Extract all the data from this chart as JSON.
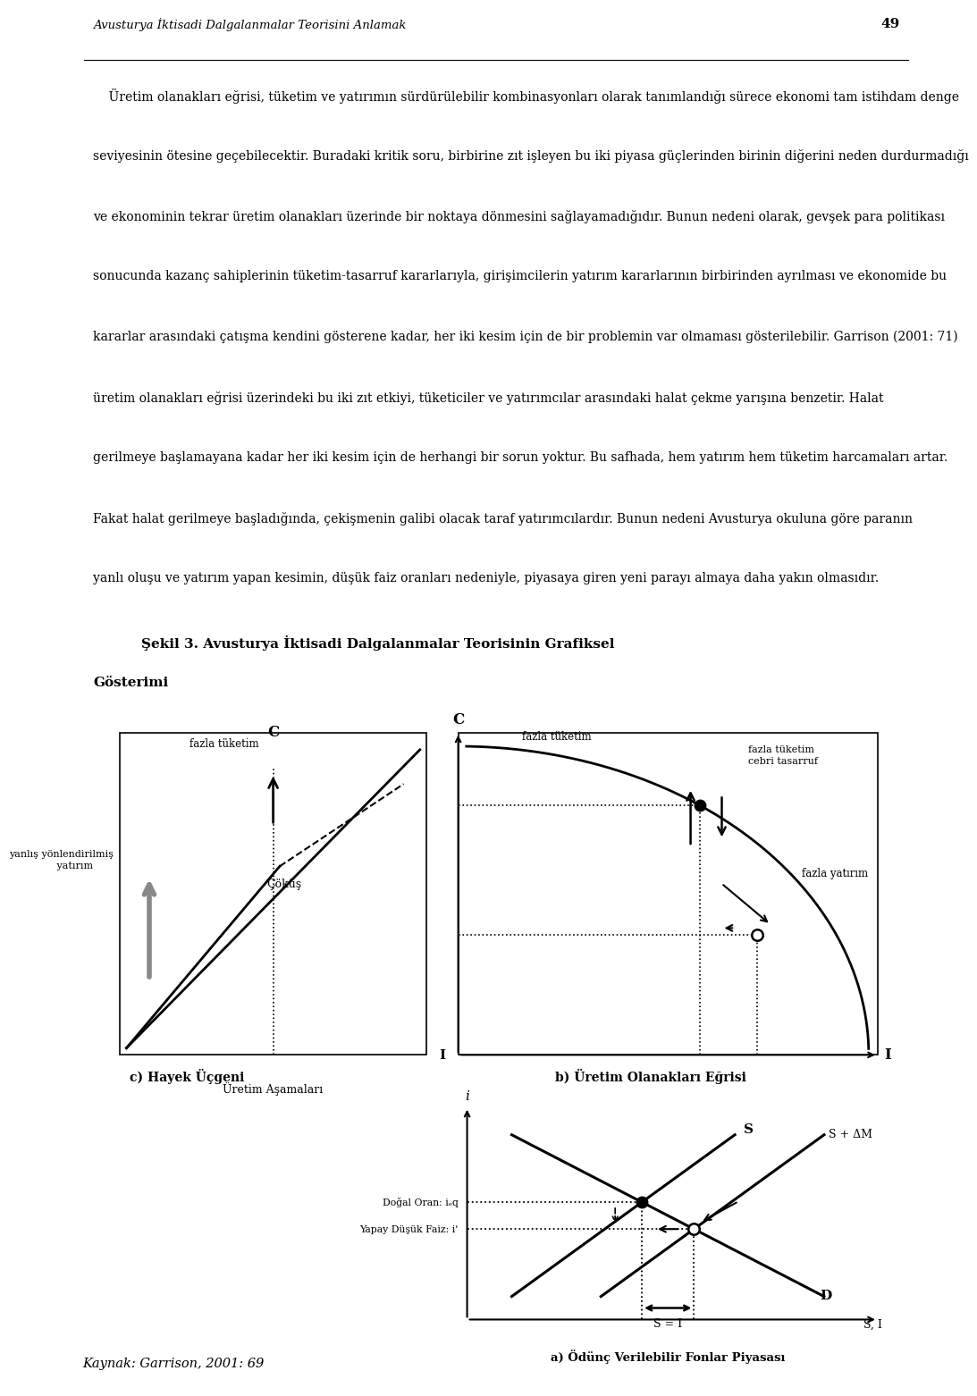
{
  "header_text": "Avusturya İktisadi Dalgalanmalar Teorisini Anlamak",
  "page_number": "49",
  "para_lines": [
    "    Üretim olanakları eğrisi, tüketim ve yatırımın sürdürülebilir kombinasyonları olarak tanımlandığı sürece ekonomi tam istihdam denge",
    "seviyesinin ötesine geçebilecektir. Buradaki kritik soru, birbirine zıt işleyen bu iki piyasa güçlerinden birinin diğerini neden durdurmadığı",
    "ve ekonominin tekrar üretim olanakları üzerinde bir noktaya dönmesini sağlayamadığıdır. Bunun nedeni olarak, gevşek para politikası",
    "sonucunda kazanç sahiplerinin tüketim-tasarruf kararlarıyla, girişimcilerin yatırım kararlarının birbirinden ayrılması ve ekonomide bu",
    "kararlar arasındaki çatışma kendini gösterene kadar, her iki kesim için de bir problemin var olmaması gösterilebilir. Garrison (2001: 71)",
    "üretim olanakları eğrisi üzerindeki bu iki zıt etkiyi, tüketiciler ve yatırımcılar arasındaki halat çekme yarışına benzetir. Halat",
    "gerilmeye başlamayana kadar her iki kesim için de herhangi bir sorun yoktur. Bu safhada, hem yatırım hem tüketim harcamaları artar.",
    "Fakat halat gerilmeye başladığında, çekişmenin galibi olacak taraf yatırımcılardır. Bunun nedeni Avusturya okuluna göre paranın",
    "yanlı oluşu ve yatırım yapan kesimin, düşük faiz oranları nedeniyle, piyasaya giren yeni parayı almaya daha yakın olmasıdır."
  ],
  "figure_title_line1": "Şekil 3. Avusturya İktisadi Dalgalanmalar Teorisinin Grafiksel",
  "figure_title_line2": "Gösterimi",
  "kaynak": "Kaynak: Garrison, 2001: 69",
  "bg_color": "#ffffff",
  "text_color": "#000000"
}
